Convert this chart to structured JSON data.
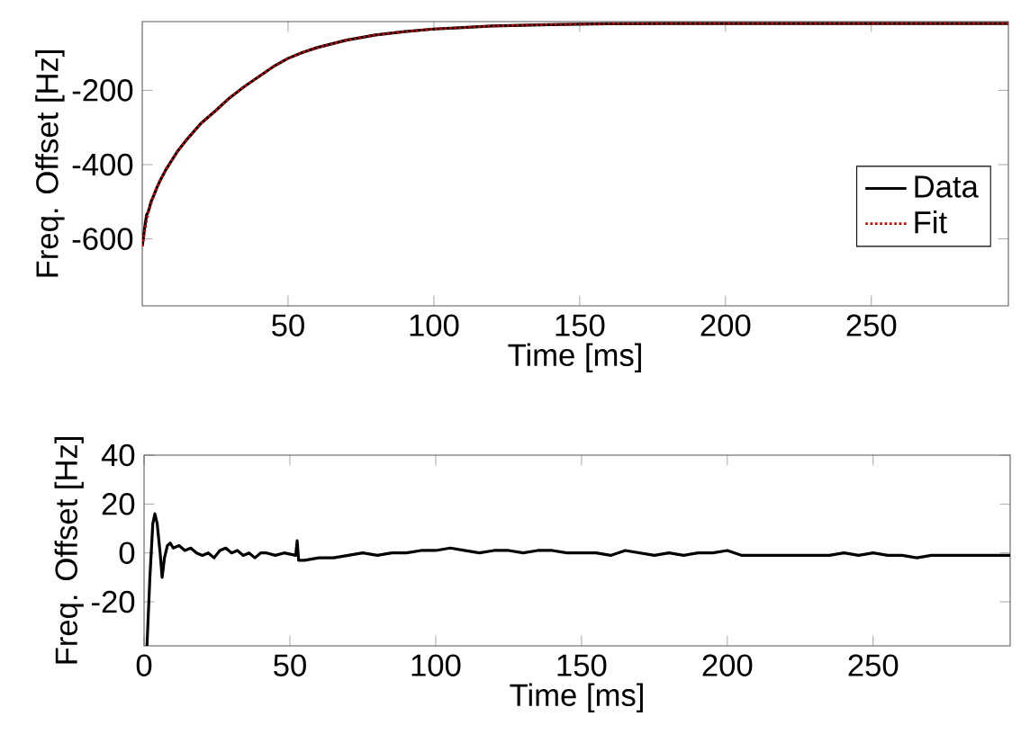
{
  "chart_data": [
    {
      "type": "line",
      "xlabel": "Time [ms]",
      "ylabel": "Freq. Offset [Hz]",
      "xlim": [
        0,
        297
      ],
      "ylim": [
        -780,
        -15
      ],
      "xticks": [
        50,
        100,
        150,
        200,
        250
      ],
      "yticks": [
        -600,
        -400,
        -200
      ],
      "grid": false,
      "legend": "right",
      "series": [
        {
          "name": "Data",
          "color": "#000000",
          "line_style": "solid",
          "x": [
            0,
            0.5,
            1,
            1.5,
            2,
            2.5,
            3,
            4,
            5,
            6,
            8,
            10,
            12,
            15,
            20,
            25,
            30,
            35,
            40,
            45,
            50,
            55,
            60,
            70,
            80,
            90,
            100,
            110,
            120,
            140,
            160,
            180,
            200,
            225,
            250,
            275,
            297
          ],
          "values": [
            -620,
            -590,
            -560,
            -535,
            -528,
            -515,
            -500,
            -482,
            -462,
            -445,
            -415,
            -390,
            -365,
            -335,
            -290,
            -256,
            -220,
            -190,
            -163,
            -136,
            -114,
            -98,
            -85,
            -65,
            -51,
            -42,
            -35,
            -31,
            -27,
            -23,
            -21,
            -20,
            -20,
            -20,
            -20,
            -20,
            -20
          ]
        },
        {
          "name": "Fit",
          "color": "#cc0000",
          "line_style": "dotted",
          "x": [
            0,
            1,
            2,
            4,
            6,
            8,
            10,
            12,
            15,
            20,
            25,
            30,
            35,
            40,
            45,
            50,
            55,
            60,
            70,
            80,
            90,
            100,
            110,
            120,
            140,
            160,
            180,
            200,
            225,
            250,
            275,
            297
          ],
          "values": [
            -620,
            -570,
            -530,
            -480,
            -445,
            -415,
            -390,
            -365,
            -335,
            -290,
            -256,
            -220,
            -190,
            -163,
            -136,
            -114,
            -98,
            -85,
            -65,
            -51,
            -42,
            -35,
            -31,
            -27,
            -23,
            -21,
            -20,
            -20,
            -20,
            -20,
            -20,
            -20
          ]
        }
      ]
    },
    {
      "type": "line",
      "xlabel": "Time [ms]",
      "ylabel": "Freq. Offset [Hz]",
      "xlim": [
        0,
        297
      ],
      "ylim": [
        -38,
        40
      ],
      "xticks": [
        0,
        50,
        100,
        150,
        200,
        250
      ],
      "yticks": [
        -20,
        0,
        20,
        40
      ],
      "grid": false,
      "legend": false,
      "series": [
        {
          "color": "#000000",
          "line_style": "solid",
          "x": [
            1,
            2,
            3,
            3.7,
            4.5,
            5.5,
            6.2,
            7,
            8,
            9,
            10,
            12,
            14,
            16,
            18,
            20,
            22,
            24,
            26,
            28,
            30,
            32,
            34,
            36,
            38,
            40,
            42,
            45,
            48,
            52,
            52.5,
            53,
            55,
            60,
            65,
            70,
            75,
            80,
            85,
            90,
            95,
            100,
            105,
            110,
            115,
            120,
            125,
            130,
            135,
            140,
            145,
            150,
            155,
            160,
            165,
            170,
            175,
            180,
            185,
            190,
            195,
            200,
            205,
            210,
            215,
            220,
            225,
            230,
            235,
            240,
            245,
            250,
            255,
            260,
            265,
            270,
            275,
            280,
            285,
            290,
            297
          ],
          "values": [
            -38,
            -10,
            12,
            16,
            12,
            0,
            -10,
            -2,
            3,
            4,
            2,
            3,
            1,
            2,
            0,
            -1,
            0,
            -2,
            1,
            2,
            0,
            1,
            -1,
            0,
            -2,
            0,
            0,
            -1,
            0,
            -1,
            5,
            -3,
            -3,
            -2,
            -2,
            -1,
            0,
            -1,
            0,
            0,
            1,
            1,
            2,
            1,
            0,
            1,
            1,
            0,
            1,
            1,
            0,
            0,
            0,
            -1,
            1,
            0,
            -1,
            0,
            -1,
            0,
            0,
            1,
            -1,
            -1,
            -1,
            -1,
            -1,
            -1,
            -1,
            0,
            -1,
            0,
            -1,
            -1,
            -2,
            -1,
            -1,
            -1,
            -1,
            -1,
            -1
          ]
        }
      ]
    }
  ]
}
